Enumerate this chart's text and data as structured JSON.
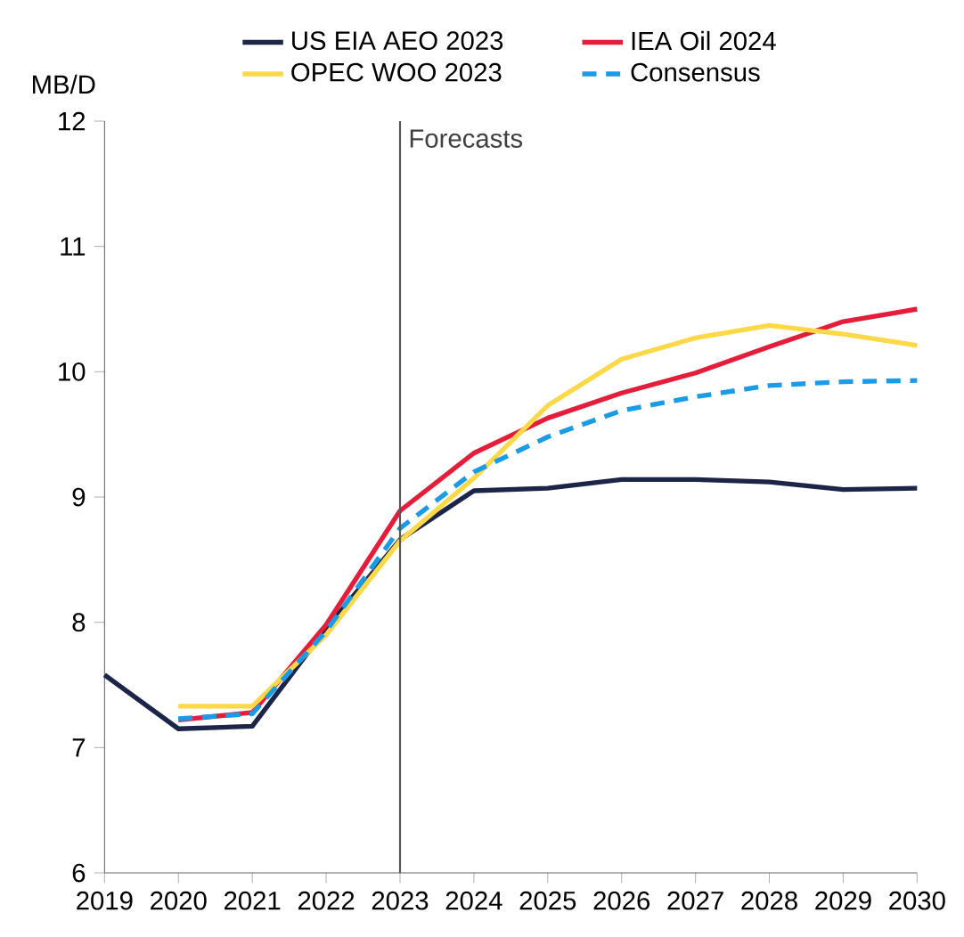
{
  "chart_data": {
    "type": "line",
    "ylabel": "MB/D",
    "x": [
      2019,
      2020,
      2021,
      2022,
      2023,
      2024,
      2025,
      2026,
      2027,
      2028,
      2029,
      2030
    ],
    "series": [
      {
        "name": "US EIA AEO 2023",
        "color": "#1c2448",
        "values": [
          7.58,
          7.15,
          7.17,
          7.95,
          8.66,
          9.05,
          9.07,
          9.14,
          9.14,
          9.12,
          9.06,
          9.07
        ]
      },
      {
        "name": "IEA Oil 2024",
        "color": "#e41e3a",
        "values": [
          null,
          7.22,
          7.28,
          7.98,
          8.89,
          9.35,
          9.63,
          9.83,
          9.99,
          10.2,
          10.4,
          10.5
        ]
      },
      {
        "name": "OPEC WOO 2023",
        "color": "#fdd848",
        "values": [
          null,
          7.33,
          7.33,
          7.9,
          8.65,
          9.15,
          9.73,
          10.1,
          10.27,
          10.37,
          10.3,
          10.21
        ]
      },
      {
        "name": "Consensus",
        "color": "#1a9be6",
        "line_style": "dashed",
        "values": [
          null,
          7.23,
          7.27,
          7.93,
          8.75,
          9.2,
          9.48,
          9.69,
          9.8,
          9.89,
          9.92,
          9.93
        ]
      }
    ],
    "xlim": [
      2019,
      2030
    ],
    "xticks": [
      2019,
      2020,
      2021,
      2022,
      2023,
      2024,
      2025,
      2026,
      2027,
      2028,
      2029,
      2030
    ],
    "ylim": [
      6,
      12
    ],
    "yticks": [
      6,
      7,
      8,
      9,
      10,
      11,
      12
    ],
    "ref_lines": [
      {
        "axis": "x",
        "value": 2023,
        "label": "Forecasts",
        "color": "#555555"
      }
    ],
    "grid": false,
    "legend": "top",
    "marker": "none"
  }
}
